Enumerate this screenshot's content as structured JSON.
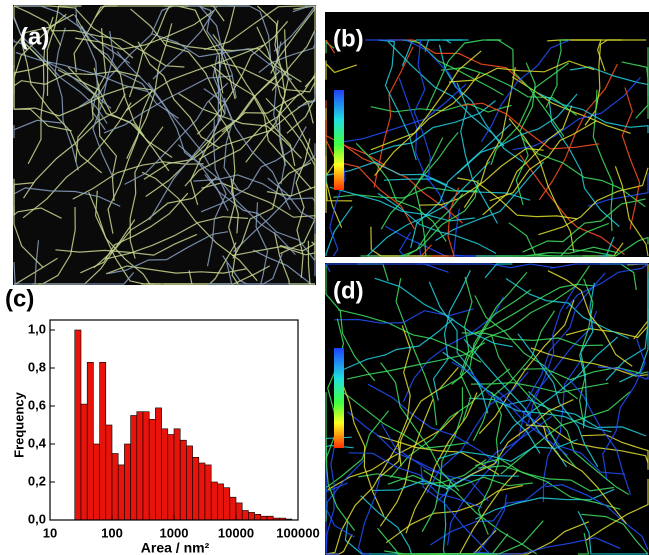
{
  "panels": {
    "a": "(a)",
    "b": "(b)",
    "d": "(d)"
  },
  "chart_data": {
    "type": "histogram",
    "label": "(c)",
    "xlabel": "Area / nm²",
    "ylabel": "Frequency",
    "color": "#e8140c",
    "edgecolor": "#000000",
    "xscale": "log",
    "xlim": [
      10,
      100000
    ],
    "xticks": [
      10,
      100,
      1000,
      10000,
      100000
    ],
    "ylim": [
      0,
      1.0
    ],
    "yticks": [
      {
        "value": 0,
        "label": "0,0"
      },
      {
        "value": 0.2,
        "label": "0,2"
      },
      {
        "value": 0.4,
        "label": "0,4"
      },
      {
        "value": 0.6,
        "label": "0,6"
      },
      {
        "value": 0.8,
        "label": "0,8"
      },
      {
        "value": 1.0,
        "label": "1,0"
      }
    ],
    "bins": [
      25.1,
      31.6,
      39.8,
      50.1,
      63.1,
      79.4,
      100,
      125.9,
      158.5,
      199.5,
      251.2,
      316.2,
      398.1,
      501.2,
      631,
      794.3,
      1000,
      1258.9,
      1584.9,
      1995.3,
      2511.9,
      3162.3,
      3981.1,
      5011.9,
      6309.6,
      7943.3,
      10000,
      12589,
      15849,
      19953,
      25119,
      31623,
      39811,
      50119,
      63096,
      79433
    ],
    "values": [
      1.0,
      0.61,
      0.83,
      0.4,
      0.83,
      0.5,
      0.35,
      0.29,
      0.4,
      0.55,
      0.57,
      0.57,
      0.53,
      0.59,
      0.48,
      0.45,
      0.48,
      0.42,
      0.39,
      0.33,
      0.3,
      0.29,
      0.2,
      0.19,
      0.17,
      0.12,
      0.09,
      0.05,
      0.04,
      0.03,
      0.02,
      0.02,
      0.01,
      0.01,
      0.005
    ]
  }
}
